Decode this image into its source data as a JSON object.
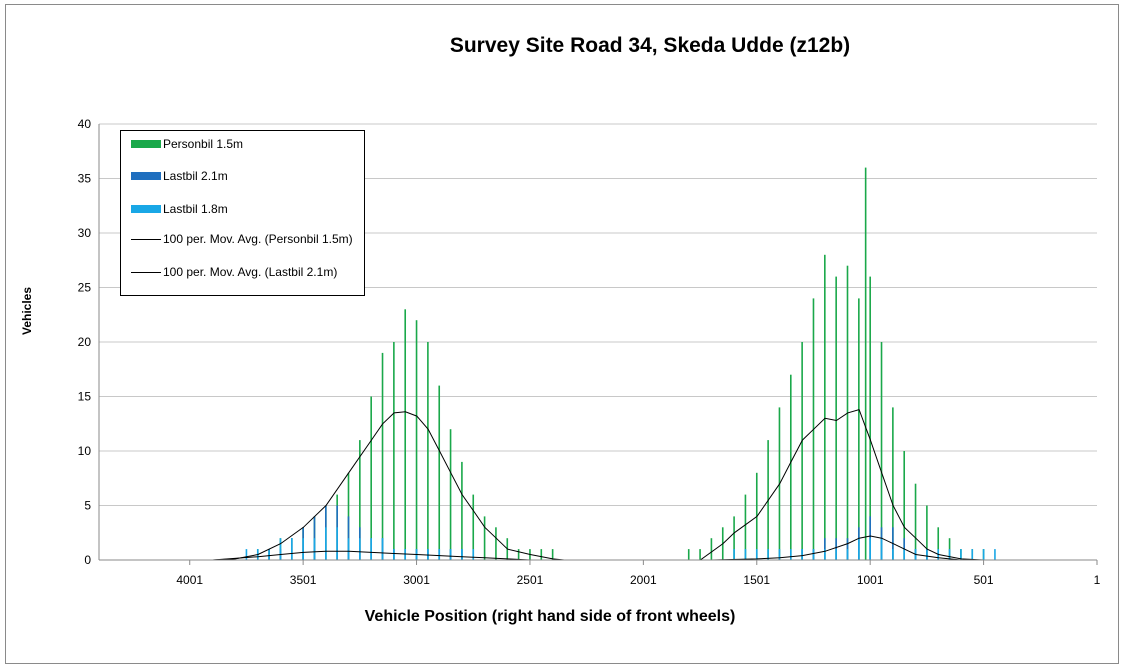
{
  "chart_data": {
    "type": "bar",
    "title": "Survey Site Road 34, Skeda Udde (z12b)",
    "xlabel": "Vehicle Position (right hand side of front wheels)",
    "ylabel": "Vehicles",
    "x_reversed": true,
    "xlim": [
      4401,
      1
    ],
    "ylim": [
      0,
      40
    ],
    "yticks": [
      0,
      5,
      10,
      15,
      20,
      25,
      30,
      35,
      40
    ],
    "xtick_labels": [
      "4001",
      "3501",
      "3001",
      "2501",
      "2001",
      "1501",
      "1001",
      "501",
      "1"
    ],
    "xtick_values": [
      4001,
      3501,
      3001,
      2501,
      2001,
      1501,
      1001,
      501,
      1
    ],
    "grid": "horizontal",
    "legend_position": "top-left",
    "series": [
      {
        "name": "Personbil 1.5m",
        "kind": "bar",
        "color": "#1aa84a",
        "x": [
          3701,
          3651,
          3601,
          3551,
          3501,
          3451,
          3401,
          3351,
          3301,
          3251,
          3201,
          3151,
          3101,
          3051,
          3001,
          2951,
          2901,
          2851,
          2801,
          2751,
          2701,
          2651,
          2601,
          2551,
          2501,
          2451,
          2401,
          1801,
          1751,
          1701,
          1651,
          1601,
          1551,
          1501,
          1451,
          1401,
          1351,
          1301,
          1251,
          1201,
          1151,
          1101,
          1051,
          1021,
          1001,
          951,
          901,
          851,
          801,
          751,
          701,
          651,
          601,
          551,
          501
        ],
        "values": [
          1,
          1,
          2,
          2,
          3,
          4,
          5,
          6,
          8,
          11,
          15,
          19,
          20,
          23,
          22,
          20,
          16,
          12,
          9,
          6,
          4,
          3,
          2,
          1,
          1,
          1,
          1,
          1,
          1,
          2,
          3,
          4,
          6,
          8,
          11,
          14,
          17,
          20,
          24,
          28,
          26,
          27,
          24,
          36,
          26,
          20,
          14,
          10,
          7,
          5,
          3,
          2,
          1,
          1,
          1
        ]
      },
      {
        "name": "Lastbil 2.1m",
        "kind": "bar",
        "color": "#1f6fbf",
        "x": [
          3651,
          3601,
          3551,
          3501,
          3451,
          3401,
          3351,
          3301,
          3251,
          3201,
          3151,
          3101,
          3051,
          3001,
          2951,
          2901,
          2851,
          2801,
          1301,
          1251,
          1201,
          1151,
          1101,
          1051,
          1001,
          951,
          901,
          851,
          801,
          751
        ],
        "values": [
          1,
          1,
          2,
          3,
          4,
          5,
          5,
          4,
          3,
          2,
          2,
          1,
          1,
          1,
          1,
          1,
          1,
          1,
          1,
          1,
          2,
          2,
          2,
          3,
          4,
          3,
          3,
          2,
          1,
          1
        ]
      },
      {
        "name": "Lastbil 1.8m",
        "kind": "bar",
        "color": "#19a7e6",
        "x": [
          3751,
          3701,
          3651,
          3601,
          3551,
          3501,
          3451,
          3401,
          3351,
          3301,
          3251,
          3201,
          3151,
          3101,
          3051,
          3001,
          2951,
          2901,
          2851,
          2801,
          2751,
          1601,
          1551,
          1501,
          1451,
          1401,
          1351,
          1301,
          1251,
          1201,
          1151,
          1101,
          1051,
          1001,
          951,
          901,
          851,
          801,
          751,
          701,
          651,
          601,
          551,
          501,
          451
        ],
        "values": [
          1,
          1,
          1,
          2,
          2,
          2,
          2,
          3,
          3,
          2,
          2,
          2,
          2,
          1,
          1,
          1,
          1,
          1,
          1,
          1,
          1,
          1,
          1,
          1,
          1,
          1,
          1,
          1,
          1,
          1,
          1,
          1,
          2,
          2,
          2,
          1,
          1,
          1,
          1,
          1,
          1,
          1,
          1,
          1,
          1
        ]
      },
      {
        "name": "100 per. Mov. Avg. (Personbil 1.5m)",
        "kind": "line",
        "color": "#000000",
        "x": [
          3900,
          3800,
          3700,
          3600,
          3500,
          3400,
          3300,
          3200,
          3150,
          3100,
          3050,
          3000,
          2950,
          2900,
          2850,
          2800,
          2750,
          2700,
          2650,
          2600,
          2500,
          2400,
          2350,
          1750,
          1650,
          1600,
          1500,
          1400,
          1350,
          1300,
          1250,
          1200,
          1150,
          1100,
          1050,
          1000,
          950,
          900,
          850,
          800,
          750,
          700,
          600,
          500
        ],
        "values": [
          0,
          0.1,
          0.5,
          1.5,
          3,
          5,
          8,
          11,
          12.5,
          13.5,
          13.6,
          13.2,
          12,
          10,
          8,
          6,
          4.5,
          3,
          2,
          1,
          0.5,
          0.1,
          0,
          0,
          1.5,
          2.5,
          4,
          7,
          9,
          11,
          12,
          13,
          12.8,
          13.5,
          13.8,
          11,
          8,
          5,
          3,
          2,
          1,
          0.5,
          0.1,
          0
        ]
      },
      {
        "name": "100 per. Mov. Avg. (Lastbil 2.1m)",
        "kind": "line",
        "color": "#000000",
        "x": [
          3900,
          3700,
          3600,
          3500,
          3400,
          3300,
          3200,
          3100,
          3000,
          2900,
          2800,
          2700,
          2600,
          2500,
          1700,
          1500,
          1400,
          1300,
          1200,
          1100,
          1050,
          1000,
          950,
          900,
          850,
          800,
          700,
          600
        ],
        "values": [
          0,
          0.3,
          0.5,
          0.7,
          0.8,
          0.8,
          0.7,
          0.6,
          0.5,
          0.4,
          0.3,
          0.2,
          0.1,
          0,
          0,
          0.1,
          0.2,
          0.4,
          0.8,
          1.5,
          2,
          2.2,
          2,
          1.5,
          1,
          0.5,
          0.2,
          0
        ]
      }
    ]
  }
}
